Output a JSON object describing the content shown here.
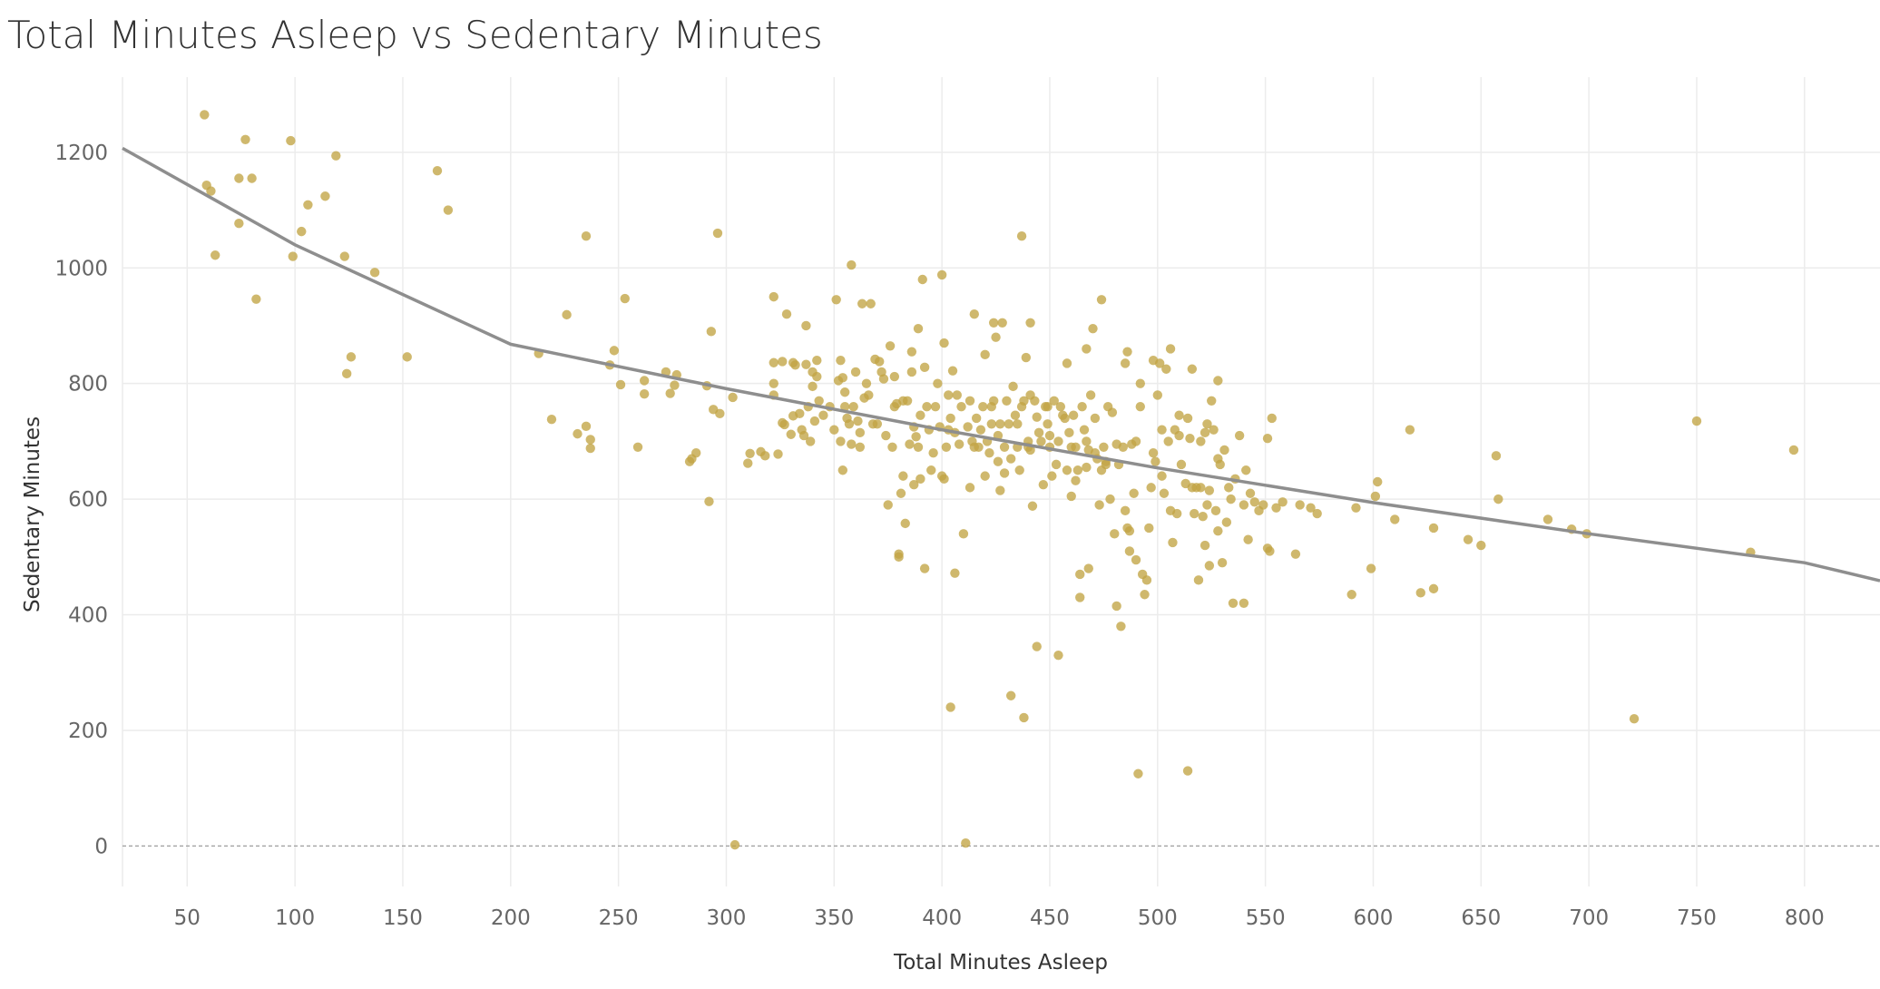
{
  "chart_data": {
    "type": "scatter",
    "title": "Total Minutes Asleep vs Sedentary Minutes",
    "xlabel": "Total Minutes Asleep",
    "ylabel": "Sedentary Minutes",
    "xlim": [
      20,
      835
    ],
    "ylim": [
      -70,
      1330
    ],
    "xticks": [
      "50",
      "100",
      "150",
      "200",
      "250",
      "300",
      "350",
      "400",
      "450",
      "500",
      "550",
      "600",
      "650",
      "700",
      "750",
      "800"
    ],
    "yticks": [
      "0",
      "200",
      "400",
      "600",
      "800",
      "1000",
      "1200"
    ],
    "grid": true,
    "point_color": "#c1a444",
    "trend_color": "#8e8e8e",
    "trend_line": {
      "x": [
        20,
        100,
        200,
        300,
        400,
        500,
        600,
        700,
        800,
        835
      ],
      "y": [
        1207,
        1040,
        868,
        791,
        720,
        654,
        594,
        540,
        490,
        459
      ]
    },
    "points": [
      [
        58,
        1265
      ],
      [
        59,
        1143
      ],
      [
        61,
        1133
      ],
      [
        63,
        1022
      ],
      [
        74,
        1155
      ],
      [
        74,
        1077
      ],
      [
        77,
        1222
      ],
      [
        80,
        1155
      ],
      [
        82,
        946
      ],
      [
        98,
        1220
      ],
      [
        99,
        1020
      ],
      [
        103,
        1063
      ],
      [
        106,
        1109
      ],
      [
        114,
        1124
      ],
      [
        119,
        1194
      ],
      [
        123,
        1020
      ],
      [
        124,
        817
      ],
      [
        126,
        846
      ],
      [
        137,
        992
      ],
      [
        152,
        846
      ],
      [
        166,
        1168
      ],
      [
        171,
        1100
      ],
      [
        213,
        852
      ],
      [
        219,
        738
      ],
      [
        226,
        919
      ],
      [
        231,
        713
      ],
      [
        235,
        1055
      ],
      [
        235,
        726
      ],
      [
        237,
        688
      ],
      [
        237,
        703
      ],
      [
        246,
        832
      ],
      [
        248,
        857
      ],
      [
        251,
        798
      ],
      [
        253,
        947
      ],
      [
        259,
        690
      ],
      [
        262,
        782
      ],
      [
        262,
        805
      ],
      [
        272,
        820
      ],
      [
        274,
        783
      ],
      [
        276,
        797
      ],
      [
        277,
        815
      ],
      [
        283,
        665
      ],
      [
        284,
        670
      ],
      [
        286,
        680
      ],
      [
        291,
        796
      ],
      [
        292,
        596
      ],
      [
        293,
        890
      ],
      [
        294,
        755
      ],
      [
        296,
        1060
      ],
      [
        297,
        748
      ],
      [
        303,
        776
      ],
      [
        304,
        2
      ],
      [
        310,
        662
      ],
      [
        311,
        679
      ],
      [
        316,
        682
      ],
      [
        318,
        675
      ],
      [
        322,
        950
      ],
      [
        322,
        836
      ],
      [
        322,
        800
      ],
      [
        322,
        780
      ],
      [
        324,
        678
      ],
      [
        326,
        838
      ],
      [
        326,
        732
      ],
      [
        327,
        729
      ],
      [
        328,
        920
      ],
      [
        330,
        712
      ],
      [
        331,
        836
      ],
      [
        331,
        744
      ],
      [
        332,
        832
      ],
      [
        334,
        748
      ],
      [
        335,
        720
      ],
      [
        336,
        710
      ],
      [
        337,
        900
      ],
      [
        337,
        833
      ],
      [
        338,
        760
      ],
      [
        339,
        700
      ],
      [
        340,
        820
      ],
      [
        340,
        795
      ],
      [
        341,
        735
      ],
      [
        342,
        840
      ],
      [
        342,
        812
      ],
      [
        343,
        770
      ],
      [
        345,
        745
      ],
      [
        348,
        760
      ],
      [
        350,
        720
      ],
      [
        351,
        945
      ],
      [
        352,
        805
      ],
      [
        353,
        840
      ],
      [
        353,
        700
      ],
      [
        354,
        810
      ],
      [
        354,
        650
      ],
      [
        355,
        785
      ],
      [
        355,
        760
      ],
      [
        356,
        740
      ],
      [
        357,
        730
      ],
      [
        358,
        1005
      ],
      [
        358,
        695
      ],
      [
        359,
        760
      ],
      [
        360,
        820
      ],
      [
        361,
        735
      ],
      [
        362,
        715
      ],
      [
        362,
        690
      ],
      [
        363,
        938
      ],
      [
        364,
        775
      ],
      [
        365,
        800
      ],
      [
        366,
        780
      ],
      [
        367,
        938
      ],
      [
        368,
        730
      ],
      [
        369,
        842
      ],
      [
        370,
        730
      ],
      [
        371,
        838
      ],
      [
        372,
        820
      ],
      [
        373,
        808
      ],
      [
        374,
        710
      ],
      [
        375,
        590
      ],
      [
        376,
        865
      ],
      [
        377,
        690
      ],
      [
        378,
        812
      ],
      [
        378,
        760
      ],
      [
        379,
        765
      ],
      [
        380,
        505
      ],
      [
        380,
        500
      ],
      [
        381,
        610
      ],
      [
        382,
        770
      ],
      [
        382,
        640
      ],
      [
        383,
        558
      ],
      [
        384,
        770
      ],
      [
        385,
        695
      ],
      [
        386,
        855
      ],
      [
        386,
        820
      ],
      [
        387,
        625
      ],
      [
        387,
        725
      ],
      [
        388,
        708
      ],
      [
        389,
        690
      ],
      [
        389,
        895
      ],
      [
        390,
        745
      ],
      [
        390,
        635
      ],
      [
        391,
        980
      ],
      [
        392,
        828
      ],
      [
        392,
        480
      ],
      [
        393,
        760
      ],
      [
        394,
        720
      ],
      [
        395,
        650
      ],
      [
        396,
        680
      ],
      [
        397,
        760
      ],
      [
        398,
        800
      ],
      [
        399,
        725
      ],
      [
        400,
        988
      ],
      [
        400,
        640
      ],
      [
        401,
        870
      ],
      [
        401,
        635
      ],
      [
        402,
        690
      ],
      [
        403,
        780
      ],
      [
        403,
        720
      ],
      [
        404,
        740
      ],
      [
        404,
        240
      ],
      [
        405,
        822
      ],
      [
        406,
        715
      ],
      [
        406,
        472
      ],
      [
        407,
        780
      ],
      [
        408,
        695
      ],
      [
        409,
        760
      ],
      [
        410,
        540
      ],
      [
        411,
        5
      ],
      [
        412,
        725
      ],
      [
        413,
        770
      ],
      [
        413,
        620
      ],
      [
        414,
        700
      ],
      [
        415,
        920
      ],
      [
        415,
        690
      ],
      [
        416,
        740
      ],
      [
        417,
        690
      ],
      [
        418,
        720
      ],
      [
        419,
        760
      ],
      [
        420,
        850
      ],
      [
        420,
        640
      ],
      [
        421,
        700
      ],
      [
        422,
        680
      ],
      [
        423,
        760
      ],
      [
        423,
        730
      ],
      [
        424,
        770
      ],
      [
        424,
        905
      ],
      [
        425,
        880
      ],
      [
        426,
        710
      ],
      [
        426,
        665
      ],
      [
        427,
        730
      ],
      [
        427,
        615
      ],
      [
        428,
        905
      ],
      [
        429,
        690
      ],
      [
        429,
        645
      ],
      [
        430,
        770
      ],
      [
        431,
        730
      ],
      [
        432,
        670
      ],
      [
        432,
        260
      ],
      [
        433,
        795
      ],
      [
        434,
        745
      ],
      [
        435,
        690
      ],
      [
        435,
        730
      ],
      [
        436,
        650
      ],
      [
        437,
        1055
      ],
      [
        437,
        760
      ],
      [
        438,
        770
      ],
      [
        438,
        222
      ],
      [
        439,
        845
      ],
      [
        440,
        700
      ],
      [
        440,
        690
      ],
      [
        441,
        905
      ],
      [
        441,
        780
      ],
      [
        441,
        685
      ],
      [
        442,
        588
      ],
      [
        443,
        770
      ],
      [
        444,
        742
      ],
      [
        444,
        345
      ],
      [
        445,
        715
      ],
      [
        446,
        700
      ],
      [
        447,
        625
      ],
      [
        448,
        760
      ],
      [
        449,
        760
      ],
      [
        449,
        730
      ],
      [
        450,
        710
      ],
      [
        450,
        690
      ],
      [
        451,
        640
      ],
      [
        452,
        770
      ],
      [
        453,
        660
      ],
      [
        454,
        700
      ],
      [
        454,
        330
      ],
      [
        455,
        760
      ],
      [
        456,
        745
      ],
      [
        457,
        740
      ],
      [
        458,
        835
      ],
      [
        458,
        650
      ],
      [
        459,
        715
      ],
      [
        460,
        690
      ],
      [
        460,
        605
      ],
      [
        461,
        745
      ],
      [
        462,
        690
      ],
      [
        462,
        632
      ],
      [
        463,
        650
      ],
      [
        464,
        430
      ],
      [
        464,
        470
      ],
      [
        465,
        760
      ],
      [
        466,
        720
      ],
      [
        467,
        700
      ],
      [
        467,
        860
      ],
      [
        467,
        655
      ],
      [
        468,
        480
      ],
      [
        468,
        685
      ],
      [
        469,
        780
      ],
      [
        470,
        895
      ],
      [
        471,
        740
      ],
      [
        471,
        680
      ],
      [
        472,
        670
      ],
      [
        473,
        590
      ],
      [
        474,
        945
      ],
      [
        474,
        650
      ],
      [
        475,
        690
      ],
      [
        476,
        665
      ],
      [
        476,
        660
      ],
      [
        477,
        760
      ],
      [
        478,
        600
      ],
      [
        479,
        750
      ],
      [
        480,
        540
      ],
      [
        481,
        695
      ],
      [
        481,
        415
      ],
      [
        482,
        660
      ],
      [
        483,
        380
      ],
      [
        484,
        690
      ],
      [
        485,
        835
      ],
      [
        485,
        580
      ],
      [
        486,
        855
      ],
      [
        486,
        550
      ],
      [
        487,
        545
      ],
      [
        487,
        510
      ],
      [
        488,
        695
      ],
      [
        489,
        610
      ],
      [
        490,
        495
      ],
      [
        490,
        700
      ],
      [
        491,
        125
      ],
      [
        492,
        800
      ],
      [
        492,
        760
      ],
      [
        493,
        470
      ],
      [
        494,
        435
      ],
      [
        495,
        460
      ],
      [
        496,
        550
      ],
      [
        497,
        620
      ],
      [
        498,
        840
      ],
      [
        498,
        680
      ],
      [
        499,
        665
      ],
      [
        500,
        780
      ],
      [
        501,
        835
      ],
      [
        502,
        720
      ],
      [
        502,
        640
      ],
      [
        503,
        610
      ],
      [
        504,
        825
      ],
      [
        505,
        700
      ],
      [
        506,
        860
      ],
      [
        506,
        580
      ],
      [
        507,
        525
      ],
      [
        508,
        720
      ],
      [
        509,
        575
      ],
      [
        510,
        710
      ],
      [
        510,
        745
      ],
      [
        511,
        660
      ],
      [
        513,
        627
      ],
      [
        514,
        740
      ],
      [
        514,
        130
      ],
      [
        515,
        705
      ],
      [
        516,
        825
      ],
      [
        516,
        620
      ],
      [
        517,
        575
      ],
      [
        518,
        620
      ],
      [
        519,
        460
      ],
      [
        520,
        620
      ],
      [
        520,
        700
      ],
      [
        521,
        570
      ],
      [
        522,
        520
      ],
      [
        522,
        715
      ],
      [
        523,
        590
      ],
      [
        523,
        730
      ],
      [
        524,
        615
      ],
      [
        524,
        485
      ],
      [
        525,
        770
      ],
      [
        526,
        720
      ],
      [
        527,
        580
      ],
      [
        528,
        805
      ],
      [
        528,
        670
      ],
      [
        528,
        545
      ],
      [
        529,
        660
      ],
      [
        530,
        490
      ],
      [
        531,
        685
      ],
      [
        532,
        560
      ],
      [
        533,
        620
      ],
      [
        534,
        600
      ],
      [
        535,
        420
      ],
      [
        536,
        635
      ],
      [
        538,
        710
      ],
      [
        540,
        420
      ],
      [
        540,
        590
      ],
      [
        541,
        650
      ],
      [
        542,
        530
      ],
      [
        543,
        610
      ],
      [
        545,
        595
      ],
      [
        547,
        580
      ],
      [
        549,
        590
      ],
      [
        551,
        515
      ],
      [
        551,
        705
      ],
      [
        552,
        510
      ],
      [
        553,
        740
      ],
      [
        555,
        585
      ],
      [
        558,
        595
      ],
      [
        564,
        505
      ],
      [
        566,
        590
      ],
      [
        571,
        585
      ],
      [
        574,
        575
      ],
      [
        590,
        435
      ],
      [
        592,
        585
      ],
      [
        599,
        480
      ],
      [
        601,
        605
      ],
      [
        602,
        630
      ],
      [
        610,
        565
      ],
      [
        617,
        720
      ],
      [
        622,
        438
      ],
      [
        628,
        445
      ],
      [
        628,
        550
      ],
      [
        644,
        530
      ],
      [
        650,
        520
      ],
      [
        657,
        675
      ],
      [
        658,
        600
      ],
      [
        681,
        565
      ],
      [
        692,
        548
      ],
      [
        699,
        540
      ],
      [
        721,
        220
      ],
      [
        750,
        735
      ],
      [
        775,
        508
      ],
      [
        795,
        685
      ]
    ]
  }
}
